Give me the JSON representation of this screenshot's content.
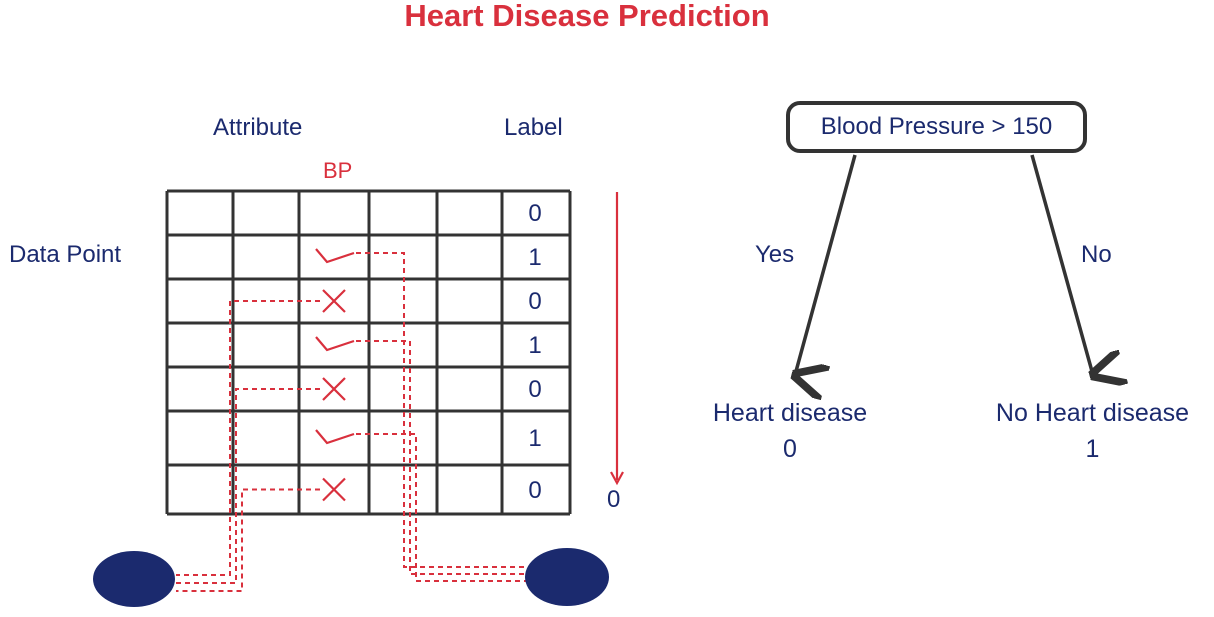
{
  "title": "Heart Disease Prediction",
  "table": {
    "attribute_header": "Attribute",
    "label_header": "Label",
    "bp_column_header": "BP",
    "row_header": "Data Point",
    "rows": [
      {
        "bp_mark": "",
        "label": "0"
      },
      {
        "bp_mark": "check",
        "label": "1"
      },
      {
        "bp_mark": "cross",
        "label": "0"
      },
      {
        "bp_mark": "check",
        "label": "1"
      },
      {
        "bp_mark": "cross",
        "label": "0"
      },
      {
        "bp_mark": "check",
        "label": "1"
      },
      {
        "bp_mark": "cross",
        "label": "0"
      }
    ],
    "arrow_result": "0"
  },
  "tree": {
    "root": "Blood Pressure > 150",
    "yes_branch": "Yes",
    "no_branch": "No",
    "left_leaf": {
      "name": "Heart disease",
      "value": "0"
    },
    "right_leaf": {
      "name": "No Heart disease",
      "value": "1"
    }
  },
  "colors": {
    "title": "#d9303d",
    "text": "#1b2a6e",
    "accent_red": "#d9303d",
    "grid": "#333333",
    "node_fill": "#1b2a6e"
  }
}
